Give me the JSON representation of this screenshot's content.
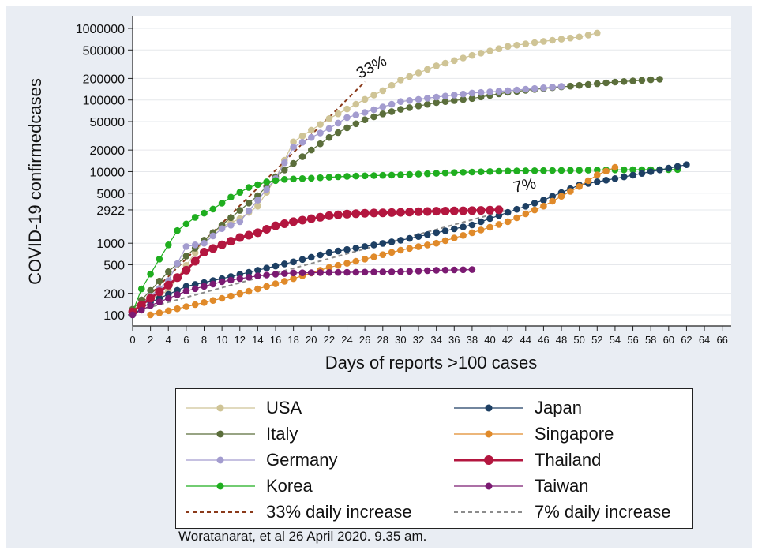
{
  "caption": "Woratanarat, et al 26 April 2020. 9.35 am.",
  "chart_data": {
    "type": "scatter",
    "yscale": "log",
    "xlabel": "Days of reports >100 cases",
    "ylabel": "COVID-19 confirmedcases",
    "xlim": [
      0,
      67
    ],
    "ylim": [
      70,
      1500000
    ],
    "xticks": [
      0,
      2,
      4,
      6,
      8,
      10,
      12,
      14,
      16,
      18,
      20,
      22,
      24,
      26,
      28,
      30,
      32,
      34,
      36,
      38,
      40,
      42,
      44,
      46,
      48,
      50,
      52,
      54,
      56,
      58,
      60,
      62,
      64,
      66
    ],
    "yticks": [
      100,
      200,
      500,
      1000,
      2922,
      5000,
      10000,
      20000,
      50000,
      100000,
      200000,
      500000,
      1000000
    ],
    "grid": "horizontal",
    "legend_position": "bottom",
    "annotations": [
      {
        "text": "33%",
        "x": 27,
        "y": 250000
      },
      {
        "text": "7%",
        "x": 44,
        "y": 5500
      }
    ],
    "series": [
      {
        "name": "USA",
        "color": "#cfc496",
        "end": 52,
        "points": [
          [
            0,
            120
          ],
          [
            4,
            220
          ],
          [
            8,
            1100
          ],
          [
            10,
            1700
          ],
          [
            12,
            2200
          ],
          [
            14,
            3300
          ],
          [
            16,
            8000
          ],
          [
            18,
            26000
          ],
          [
            20,
            38000
          ],
          [
            22,
            55000
          ],
          [
            24,
            75000
          ],
          [
            26,
            102000
          ],
          [
            28,
            135000
          ],
          [
            30,
            190000
          ],
          [
            34,
            300000
          ],
          [
            38,
            420000
          ],
          [
            42,
            560000
          ],
          [
            46,
            660000
          ],
          [
            50,
            760000
          ],
          [
            52,
            860000
          ]
        ]
      },
      {
        "name": "Italy",
        "color": "#5b6e3b",
        "end": 59,
        "points": [
          [
            0,
            120
          ],
          [
            4,
            400
          ],
          [
            8,
            1100
          ],
          [
            10,
            1800
          ],
          [
            14,
            4600
          ],
          [
            16,
            8500
          ],
          [
            18,
            13000
          ],
          [
            20,
            20000
          ],
          [
            22,
            30000
          ],
          [
            24,
            41000
          ],
          [
            26,
            53000
          ],
          [
            28,
            64000
          ],
          [
            30,
            74000
          ],
          [
            34,
            92000
          ],
          [
            38,
            105000
          ],
          [
            42,
            128000
          ],
          [
            46,
            145000
          ],
          [
            50,
            160000
          ],
          [
            54,
            178000
          ],
          [
            59,
            195000
          ]
        ]
      },
      {
        "name": "Germany",
        "color": "#a39ccf",
        "end": 48,
        "points": [
          [
            0,
            110
          ],
          [
            4,
            300
          ],
          [
            6,
            900
          ],
          [
            8,
            1000
          ],
          [
            10,
            1600
          ],
          [
            12,
            2000
          ],
          [
            14,
            4000
          ],
          [
            16,
            8000
          ],
          [
            18,
            22000
          ],
          [
            20,
            30000
          ],
          [
            22,
            40000
          ],
          [
            24,
            57000
          ],
          [
            26,
            67000
          ],
          [
            28,
            80000
          ],
          [
            30,
            95000
          ],
          [
            34,
            110000
          ],
          [
            38,
            125000
          ],
          [
            42,
            135000
          ],
          [
            46,
            148000
          ],
          [
            48,
            155000
          ]
        ]
      },
      {
        "name": "Korea",
        "color": "#1fae1f",
        "end": 61,
        "points": [
          [
            0,
            110
          ],
          [
            1,
            230
          ],
          [
            3,
            600
          ],
          [
            5,
            1500
          ],
          [
            7,
            2300
          ],
          [
            9,
            3000
          ],
          [
            11,
            4400
          ],
          [
            13,
            6000
          ],
          [
            15,
            7200
          ],
          [
            17,
            7800
          ],
          [
            20,
            8100
          ],
          [
            24,
            8600
          ],
          [
            30,
            9000
          ],
          [
            36,
            9700
          ],
          [
            42,
            10200
          ],
          [
            48,
            10400
          ],
          [
            55,
            10600
          ],
          [
            61,
            10700
          ]
        ]
      },
      {
        "name": "Japan",
        "color": "#1d3f63",
        "end": 62,
        "points": [
          [
            0,
            100
          ],
          [
            2,
            150
          ],
          [
            6,
            250
          ],
          [
            10,
            320
          ],
          [
            14,
            420
          ],
          [
            18,
            550
          ],
          [
            22,
            740
          ],
          [
            26,
            900
          ],
          [
            30,
            1100
          ],
          [
            34,
            1400
          ],
          [
            38,
            1800
          ],
          [
            42,
            2700
          ],
          [
            46,
            4000
          ],
          [
            50,
            6500
          ],
          [
            54,
            8000
          ],
          [
            58,
            10000
          ],
          [
            62,
            12500
          ]
        ]
      },
      {
        "name": "Singapore",
        "color": "#e08a2a",
        "end": 54,
        "points": [
          [
            2,
            100
          ],
          [
            6,
            130
          ],
          [
            10,
            170
          ],
          [
            14,
            230
          ],
          [
            18,
            320
          ],
          [
            22,
            460
          ],
          [
            26,
            600
          ],
          [
            30,
            800
          ],
          [
            34,
            1000
          ],
          [
            38,
            1400
          ],
          [
            42,
            2000
          ],
          [
            46,
            3300
          ],
          [
            50,
            6200
          ],
          [
            52,
            9000
          ],
          [
            54,
            11500
          ]
        ]
      },
      {
        "name": "Thailand",
        "color": "#b3163f",
        "end": 41,
        "points": [
          [
            0,
            110
          ],
          [
            2,
            170
          ],
          [
            4,
            260
          ],
          [
            6,
            420
          ],
          [
            8,
            750
          ],
          [
            10,
            950
          ],
          [
            12,
            1200
          ],
          [
            14,
            1400
          ],
          [
            16,
            1750
          ],
          [
            18,
            2000
          ],
          [
            20,
            2200
          ],
          [
            22,
            2420
          ],
          [
            24,
            2550
          ],
          [
            26,
            2620
          ],
          [
            30,
            2700
          ],
          [
            34,
            2800
          ],
          [
            38,
            2850
          ],
          [
            41,
            2922
          ]
        ]
      },
      {
        "name": "Taiwan",
        "color": "#7b1a72",
        "end": 38,
        "points": [
          [
            0,
            100
          ],
          [
            2,
            135
          ],
          [
            4,
            170
          ],
          [
            6,
            215
          ],
          [
            8,
            250
          ],
          [
            10,
            290
          ],
          [
            12,
            320
          ],
          [
            14,
            350
          ],
          [
            16,
            370
          ],
          [
            18,
            385
          ],
          [
            22,
            390
          ],
          [
            26,
            395
          ],
          [
            30,
            400
          ],
          [
            34,
            420
          ],
          [
            38,
            429
          ]
        ]
      }
    ],
    "reference_lines": [
      {
        "name": "33% daily increase",
        "color": "#8b3a1a",
        "points": [
          [
            0,
            110
          ],
          [
            26,
            180000
          ]
        ]
      },
      {
        "name": "7% daily increase",
        "color": "#8c8c8c",
        "points": [
          [
            0,
            110
          ],
          [
            42,
            2900
          ]
        ]
      }
    ]
  }
}
